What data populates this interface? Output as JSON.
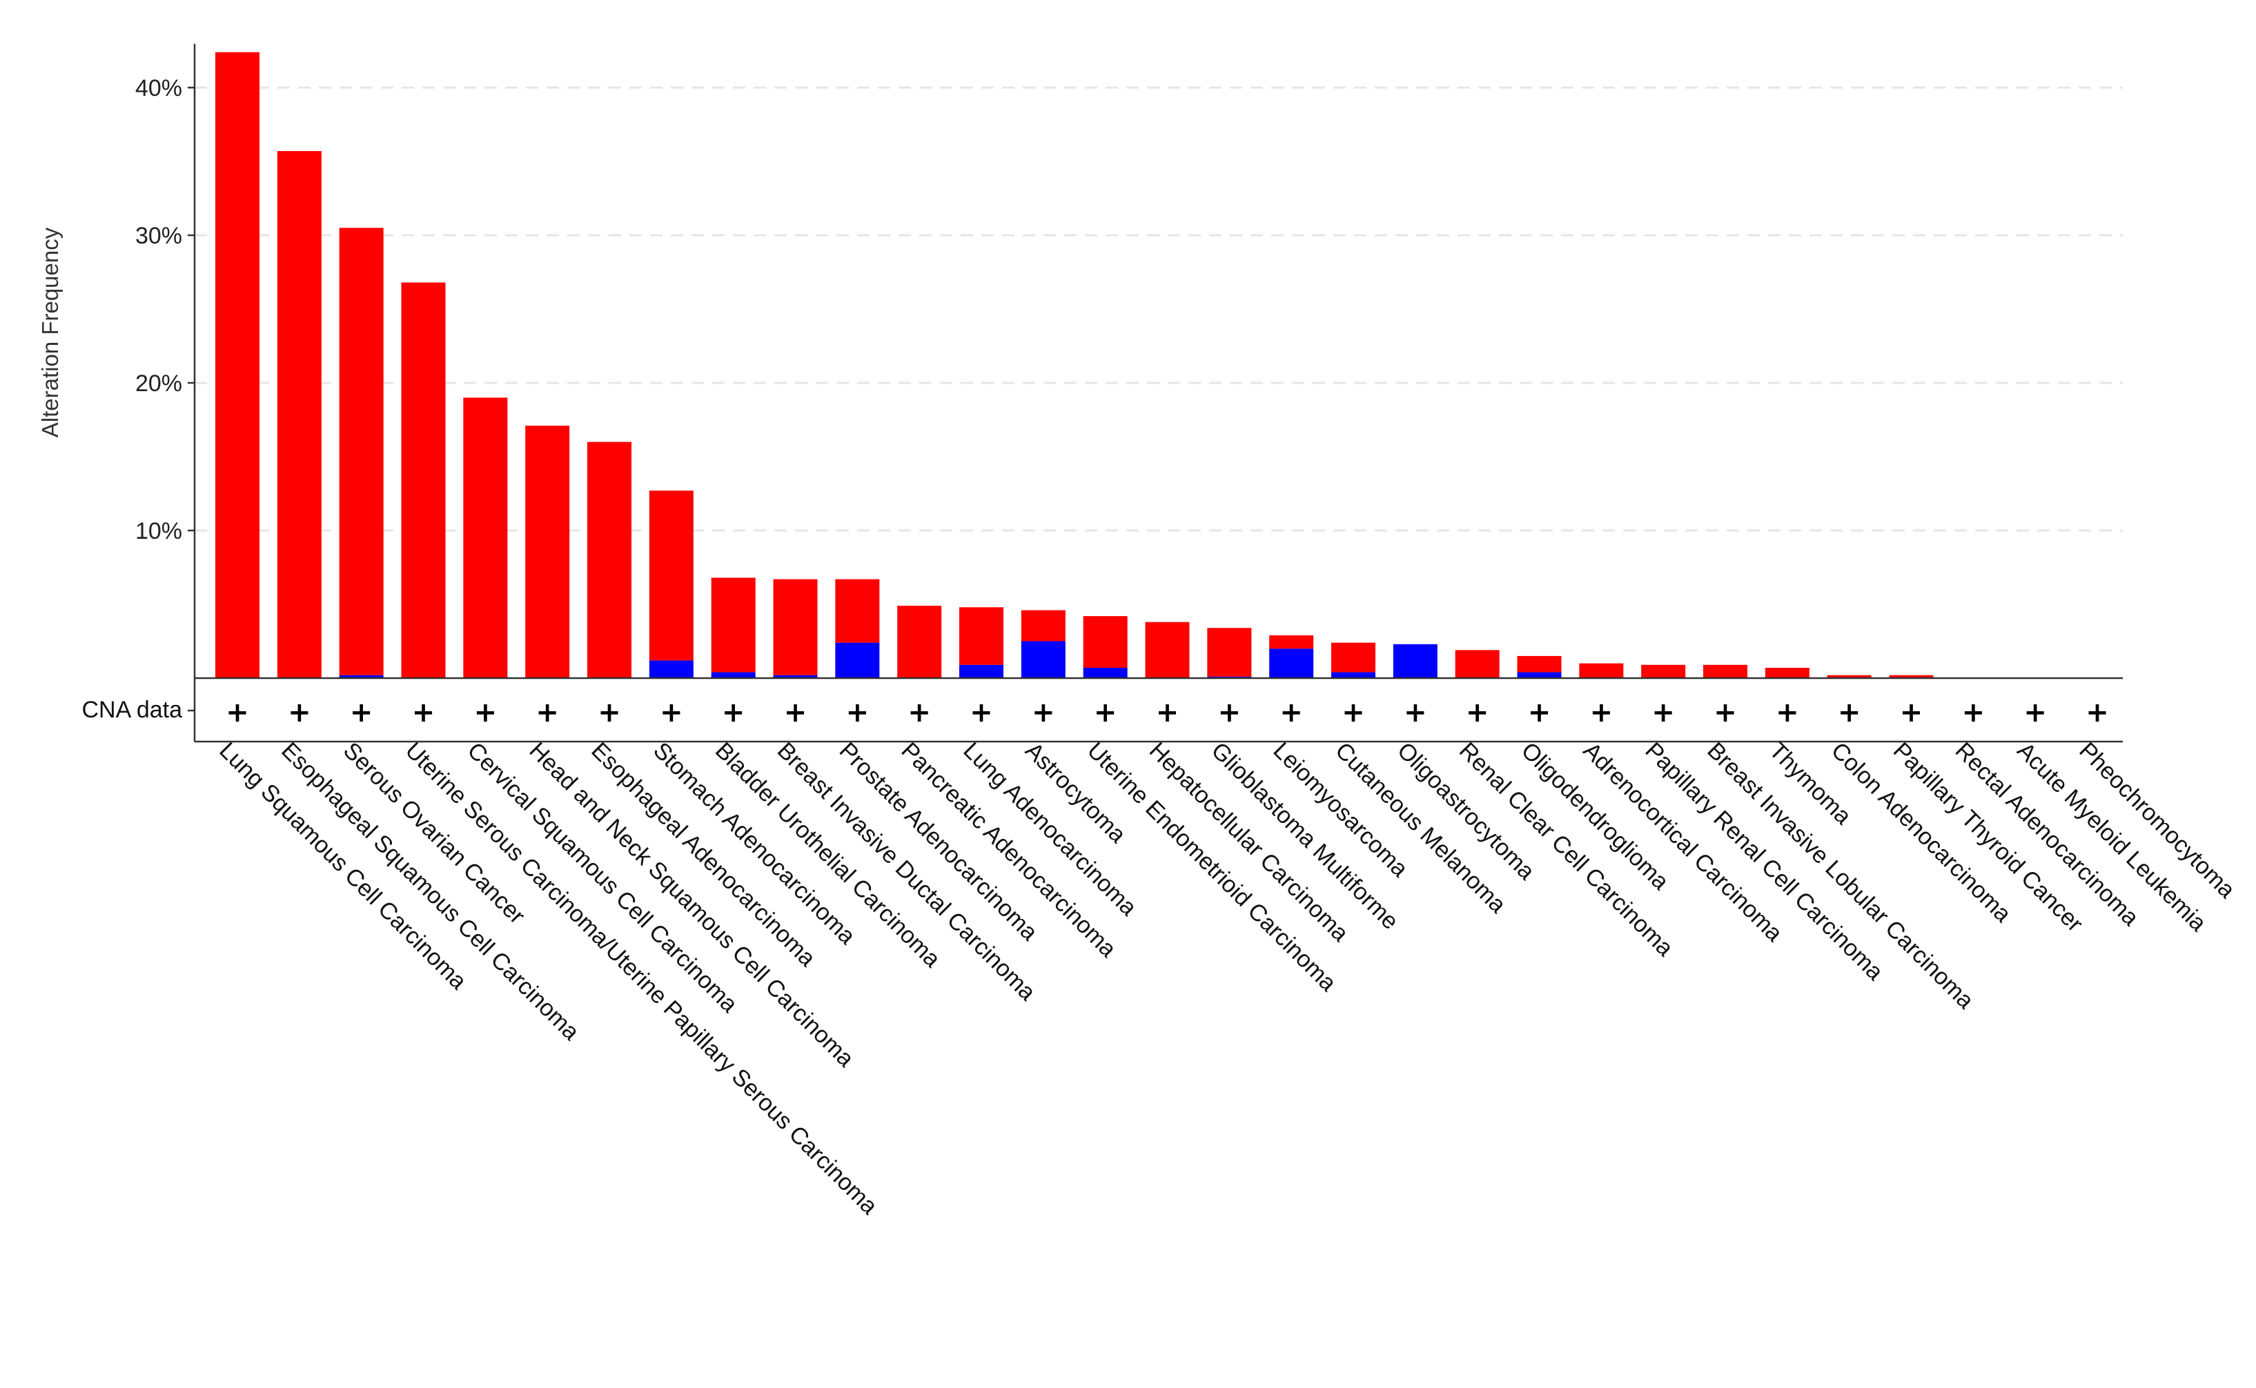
{
  "chart_data": {
    "type": "bar",
    "stacked": true,
    "title": "",
    "xlabel": "",
    "ylabel": "Alteration Frequency",
    "ylim": [
      0,
      42.5
    ],
    "yticks": [
      10,
      20,
      30,
      40
    ],
    "ytick_labels": [
      "10%",
      "20%",
      "30%",
      "40%"
    ],
    "grid": "horizontal dashed",
    "legend": "none",
    "colors": {
      "amplification": "#ff0000",
      "mutation": "#0000ff"
    },
    "categories": [
      "Lung Squamous Cell Carcinoma",
      "Esophageal Squamous Cell Carcinoma",
      "Serous Ovarian Cancer",
      "Uterine Serous Carcinoma/Uterine Papillary Serous Carcinoma",
      "Cervical Squamous Cell Carcinoma",
      "Head and Neck Squamous Cell Carcinoma",
      "Esophageal Adenocarcinoma",
      "Stomach Adenocarcinoma",
      "Bladder Urothelial Carcinoma",
      "Breast Invasive Ductal Carcinoma",
      "Prostate Adenocarcinoma",
      "Pancreatic Adenocarcinoma",
      "Lung Adenocarcinoma",
      "Astrocytoma",
      "Uterine Endometrioid Carcinoma",
      "Hepatocellular Carcinoma",
      "Glioblastoma Multiforme",
      "Leiomyosarcoma",
      "Cutaneous Melanoma",
      "Oligoastrocytoma",
      "Renal Clear Cell Carcinoma",
      "Oligodendroglioma",
      "Adrenocortical Carcinoma",
      "Papillary Renal Cell Carcinoma",
      "Breast Invasive Lobular Carcinoma",
      "Thymoma",
      "Colon Adenocarcinoma",
      "Papillary Thyroid Cancer",
      "Rectal Adenocarcinoma",
      "Acute Myeloid Leukemia",
      "Pheochromocytoma"
    ],
    "series": [
      {
        "color": "#0000ff",
        "values": [
          0,
          0,
          0.2,
          0,
          0,
          0,
          0,
          1.2,
          0.4,
          0.2,
          2.4,
          0,
          0.9,
          2.5,
          0.7,
          0,
          0.1,
          2.0,
          0.4,
          2.3,
          0,
          0.4,
          0,
          0,
          0,
          0,
          0,
          0,
          0,
          0,
          0
        ]
      },
      {
        "color": "#ff0000",
        "values": [
          42.4,
          35.7,
          30.3,
          26.8,
          19.0,
          17.1,
          16.0,
          11.5,
          6.4,
          6.5,
          4.3,
          4.9,
          3.9,
          2.1,
          3.5,
          3.8,
          3.3,
          0.9,
          2.0,
          0,
          1.9,
          1.1,
          1.0,
          0.9,
          0.9,
          0.7,
          0.2,
          0.2,
          0,
          0,
          0
        ]
      }
    ],
    "cna_track": {
      "label": "CNA data",
      "symbol": "+"
    }
  }
}
